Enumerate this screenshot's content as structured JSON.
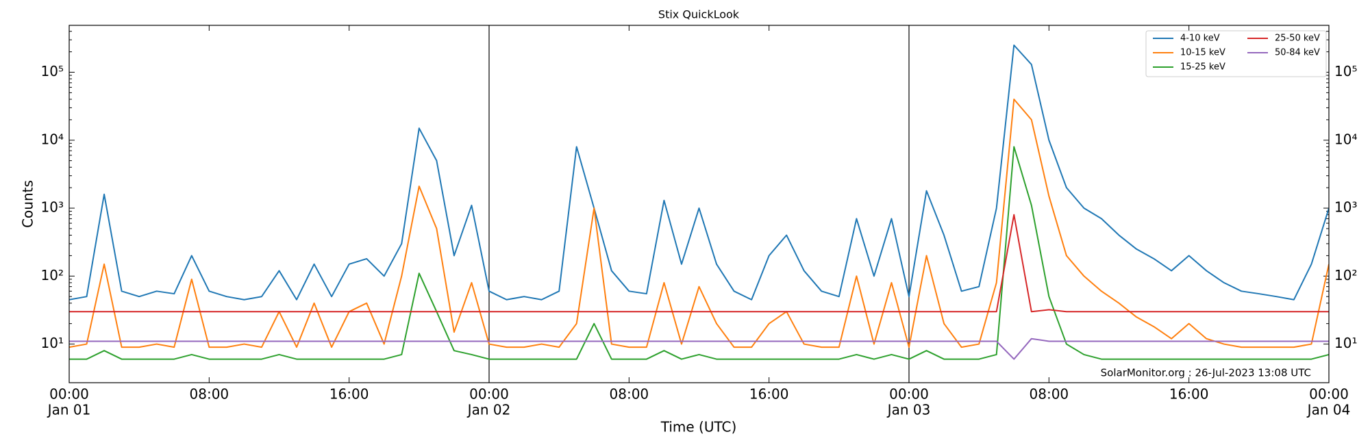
{
  "chart_data": {
    "type": "line",
    "title": "Stix QuickLook",
    "x_label": "Time (UTC)",
    "y_label": "Counts",
    "annotation": "SolarMonitor.org : 26-Jul-2023 13:08 UTC",
    "log_scale": true,
    "legend": "upper right",
    "x": [
      "Jan 01 00:00",
      "Jan 01 01:00",
      "Jan 01 02:00",
      "Jan 01 03:00",
      "Jan 01 04:00",
      "Jan 01 05:00",
      "Jan 01 06:00",
      "Jan 01 07:00",
      "Jan 01 08:00",
      "Jan 01 09:00",
      "Jan 01 10:00",
      "Jan 01 11:00",
      "Jan 01 12:00",
      "Jan 01 13:00",
      "Jan 01 14:00",
      "Jan 01 15:00",
      "Jan 01 16:00",
      "Jan 01 17:00",
      "Jan 01 18:00",
      "Jan 01 19:00",
      "Jan 01 20:00",
      "Jan 01 21:00",
      "Jan 01 22:00",
      "Jan 01 23:00",
      "Jan 02 00:00",
      "Jan 02 01:00",
      "Jan 02 02:00",
      "Jan 02 03:00",
      "Jan 02 04:00",
      "Jan 02 05:00",
      "Jan 02 06:00",
      "Jan 02 07:00",
      "Jan 02 08:00",
      "Jan 02 09:00",
      "Jan 02 10:00",
      "Jan 02 11:00",
      "Jan 02 12:00",
      "Jan 02 13:00",
      "Jan 02 14:00",
      "Jan 02 15:00",
      "Jan 02 16:00",
      "Jan 02 17:00",
      "Jan 02 18:00",
      "Jan 02 19:00",
      "Jan 02 20:00",
      "Jan 02 21:00",
      "Jan 02 22:00",
      "Jan 02 23:00",
      "Jan 03 00:00",
      "Jan 03 01:00",
      "Jan 03 02:00",
      "Jan 03 03:00",
      "Jan 03 04:00",
      "Jan 03 05:00",
      "Jan 03 06:00",
      "Jan 03 07:00",
      "Jan 03 08:00",
      "Jan 03 09:00",
      "Jan 03 10:00",
      "Jan 03 11:00",
      "Jan 03 12:00",
      "Jan 03 13:00",
      "Jan 03 14:00",
      "Jan 03 15:00",
      "Jan 03 16:00",
      "Jan 03 17:00",
      "Jan 03 18:00",
      "Jan 03 19:00",
      "Jan 03 20:00",
      "Jan 03 21:00",
      "Jan 03 22:00",
      "Jan 03 23:00",
      "Jan 04 00:00"
    ],
    "series": [
      {
        "name": "4-10 keV",
        "color": "#1f77b4",
        "values": [
          45,
          50,
          1600,
          60,
          50,
          60,
          55,
          200,
          60,
          50,
          45,
          50,
          120,
          45,
          150,
          50,
          150,
          180,
          100,
          300,
          15000,
          5000,
          200,
          1100,
          60,
          45,
          50,
          45,
          60,
          8000,
          1000,
          120,
          60,
          55,
          1300,
          150,
          1000,
          150,
          60,
          45,
          200,
          400,
          120,
          60,
          50,
          700,
          100,
          700,
          50,
          1800,
          400,
          60,
          70,
          1000,
          250000,
          130000,
          10000,
          2000,
          1000,
          700,
          400,
          250,
          180,
          120,
          200,
          120,
          80,
          60,
          55,
          50,
          45,
          150,
          1000
        ]
      },
      {
        "name": "10-15 keV",
        "color": "#ff7f0e",
        "values": [
          9,
          10,
          150,
          9,
          9,
          10,
          9,
          90,
          9,
          9,
          10,
          9,
          30,
          9,
          40,
          9,
          30,
          40,
          10,
          100,
          2100,
          500,
          15,
          80,
          10,
          9,
          9,
          10,
          9,
          20,
          1000,
          10,
          9,
          9,
          80,
          10,
          70,
          20,
          9,
          9,
          20,
          30,
          10,
          9,
          9,
          100,
          10,
          80,
          9,
          200,
          20,
          9,
          10,
          80,
          40000,
          20000,
          1500,
          200,
          100,
          60,
          40,
          25,
          18,
          12,
          20,
          12,
          10,
          9,
          9,
          9,
          9,
          10,
          150
        ]
      },
      {
        "name": "15-25 keV",
        "color": "#2ca02c",
        "values": [
          6,
          6,
          8,
          6,
          6,
          6,
          6,
          7,
          6,
          6,
          6,
          6,
          7,
          6,
          6,
          6,
          6,
          6,
          6,
          7,
          110,
          30,
          8,
          7,
          6,
          6,
          6,
          6,
          6,
          6,
          20,
          6,
          6,
          6,
          8,
          6,
          7,
          6,
          6,
          6,
          6,
          6,
          6,
          6,
          6,
          7,
          6,
          7,
          6,
          8,
          6,
          6,
          6,
          7,
          8000,
          1100,
          50,
          10,
          7,
          6,
          6,
          6,
          6,
          6,
          6,
          6,
          6,
          6,
          6,
          6,
          6,
          6,
          7
        ]
      },
      {
        "name": "25-50 keV",
        "color": "#d62728",
        "values": [
          30,
          30,
          30,
          30,
          30,
          30,
          30,
          30,
          30,
          30,
          30,
          30,
          30,
          30,
          30,
          30,
          30,
          30,
          30,
          30,
          30,
          30,
          30,
          30,
          30,
          30,
          30,
          30,
          30,
          30,
          30,
          30,
          30,
          30,
          30,
          30,
          30,
          30,
          30,
          30,
          30,
          30,
          30,
          30,
          30,
          30,
          30,
          30,
          30,
          30,
          30,
          30,
          30,
          30,
          800,
          30,
          32,
          30,
          30,
          30,
          30,
          30,
          30,
          30,
          30,
          30,
          30,
          30,
          30,
          30,
          30,
          30,
          30
        ]
      },
      {
        "name": "50-84 keV",
        "color": "#9467bd",
        "values": [
          11,
          11,
          11,
          11,
          11,
          11,
          11,
          11,
          11,
          11,
          11,
          11,
          11,
          11,
          11,
          11,
          11,
          11,
          11,
          11,
          11,
          11,
          11,
          11,
          11,
          11,
          11,
          11,
          11,
          11,
          11,
          11,
          11,
          11,
          11,
          11,
          11,
          11,
          11,
          11,
          11,
          11,
          11,
          11,
          11,
          11,
          11,
          11,
          11,
          11,
          11,
          11,
          11,
          11,
          6,
          12,
          11,
          11,
          11,
          11,
          11,
          11,
          11,
          11,
          11,
          11,
          11,
          11,
          11,
          11,
          11,
          11,
          11
        ]
      }
    ],
    "xlim": [
      "Jan 01 00:00",
      "Jan 04 00:00"
    ],
    "xticks": [
      {
        "value": "Jan 01 00:00",
        "label": [
          "00:00",
          "Jan 01"
        ]
      },
      {
        "value": "Jan 01 08:00",
        "label": [
          "08:00"
        ]
      },
      {
        "value": "Jan 01 16:00",
        "label": [
          "16:00"
        ]
      },
      {
        "value": "Jan 02 00:00",
        "label": [
          "00:00",
          "Jan 02"
        ]
      },
      {
        "value": "Jan 02 08:00",
        "label": [
          "08:00"
        ]
      },
      {
        "value": "Jan 02 16:00",
        "label": [
          "16:00"
        ]
      },
      {
        "value": "Jan 03 00:00",
        "label": [
          "00:00",
          "Jan 03"
        ]
      },
      {
        "value": "Jan 03 08:00",
        "label": [
          "08:00"
        ]
      },
      {
        "value": "Jan 03 16:00",
        "label": [
          "16:00"
        ]
      },
      {
        "value": "Jan 04 00:00",
        "label": [
          "00:00",
          "Jan 04"
        ]
      }
    ],
    "day_lines": [
      "Jan 02 00:00",
      "Jan 03 00:00"
    ],
    "ylim": [
      2.7,
      490000
    ],
    "yticks": [
      {
        "value": 10,
        "label": "10¹"
      },
      {
        "value": 100,
        "label": "10²"
      },
      {
        "value": 1000,
        "label": "10³"
      },
      {
        "value": 10000,
        "label": "10⁴"
      },
      {
        "value": 100000,
        "label": "10⁵"
      }
    ]
  }
}
